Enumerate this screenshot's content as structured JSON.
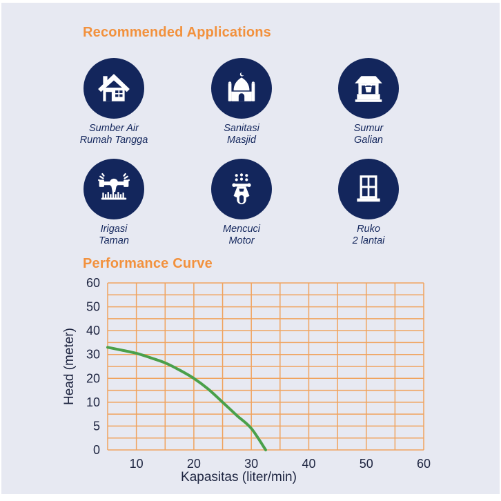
{
  "colors": {
    "background": "#e7e9f2",
    "navy": "#13265c",
    "heading_orange": "#f2913d",
    "grid_orange": "#f0a35e",
    "curve_green": "#4aa04a",
    "axis_text": "#1d2440"
  },
  "applications": {
    "title": "Recommended Applications",
    "items": [
      {
        "icon": "house-icon",
        "line1": "Sumber Air",
        "line2": "Rumah Tangga"
      },
      {
        "icon": "mosque-icon",
        "line1": "Sanitasi",
        "line2": "Masjid"
      },
      {
        "icon": "well-icon",
        "line1": "Sumur",
        "line2": "Galian"
      },
      {
        "icon": "sprinkler-icon",
        "line1": "Irigasi",
        "line2": "Taman"
      },
      {
        "icon": "scooter-icon",
        "line1": "Mencuci",
        "line2": "Motor"
      },
      {
        "icon": "window-icon",
        "line1": "Ruko",
        "line2": "2 lantai"
      }
    ]
  },
  "performance": {
    "title": "Performance Curve"
  },
  "chart_data": {
    "type": "line",
    "title": "Performance Curve",
    "xlabel": "Kapasitas (liter/min)",
    "ylabel": "Head (meter)",
    "x_ticks": [
      10,
      20,
      30,
      40,
      50,
      60
    ],
    "y_ticks": [
      0,
      5,
      10,
      20,
      30,
      40,
      50,
      60
    ],
    "x_range": [
      5,
      60
    ],
    "y_axis_type": "nonlinear-equally-spaced-labels",
    "grid": true,
    "grid_color": "#f0a35e",
    "series": [
      {
        "name": "head-vs-capacity",
        "color": "#4aa04a",
        "points": [
          [
            5,
            33
          ],
          [
            7.5,
            31.8
          ],
          [
            10,
            30.5
          ],
          [
            12.5,
            28.6
          ],
          [
            15,
            26.5
          ],
          [
            17.5,
            23.5
          ],
          [
            20,
            20
          ],
          [
            22.5,
            15.5
          ],
          [
            25,
            10
          ],
          [
            27.5,
            7.2
          ],
          [
            30,
            4.5
          ],
          [
            32.5,
            0
          ]
        ]
      }
    ]
  }
}
